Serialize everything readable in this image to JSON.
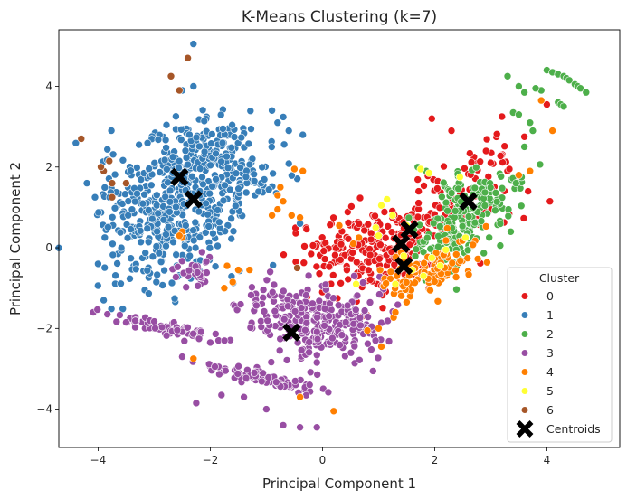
{
  "chart_data": {
    "type": "scatter",
    "title": "K-Means Clustering (k=7)",
    "xlabel": "Principal Component 1",
    "ylabel": "Principal Component 2",
    "xlim": [
      -4.7,
      5.3
    ],
    "ylim": [
      -4.95,
      5.4
    ],
    "xticks": [
      -4,
      -2,
      0,
      2,
      4
    ],
    "yticks": [
      -4,
      -2,
      0,
      2,
      4
    ],
    "xtick_labels": [
      "−4",
      "−2",
      "0",
      "2",
      "4"
    ],
    "ytick_labels": [
      "−4",
      "−2",
      "0",
      "2",
      "4"
    ],
    "grid": false,
    "legend": {
      "title": "Cluster",
      "placement": "lower right"
    },
    "series": [
      {
        "name": "0",
        "color": "#e41a1c",
        "clusters": [
          {
            "cx": 1.1,
            "cy": -0.1,
            "sx": 0.55,
            "sy": 0.55,
            "rho": 0.3,
            "n": 200
          },
          {
            "cx": 2.2,
            "cy": 0.9,
            "sx": 0.6,
            "sy": 0.45,
            "rho": 0.4,
            "n": 70
          },
          {
            "cx": 0.4,
            "cy": 0.2,
            "sx": 0.5,
            "sy": 0.4,
            "rho": 0.2,
            "n": 60
          },
          {
            "cx": 2.9,
            "cy": 2.2,
            "sx": 0.4,
            "sy": 0.35,
            "rho": 0.3,
            "n": 25
          }
        ],
        "points": [
          [
            3.2,
            3.25
          ],
          [
            1.95,
            3.2
          ],
          [
            2.3,
            2.9
          ],
          [
            4.0,
            3.55
          ],
          [
            3.6,
            2.75
          ]
        ]
      },
      {
        "name": "1",
        "color": "#377eb8",
        "clusters": [
          {
            "cx": -2.6,
            "cy": 0.6,
            "sx": 0.55,
            "sy": 0.75,
            "rho": 0.0,
            "n": 240
          },
          {
            "cx": -1.8,
            "cy": 1.9,
            "sx": 0.55,
            "sy": 0.5,
            "rho": 0.0,
            "n": 200
          },
          {
            "cx": -3.3,
            "cy": 0.4,
            "sx": 0.5,
            "sy": 0.9,
            "rho": 0.0,
            "n": 70
          },
          {
            "cx": -2.2,
            "cy": 2.7,
            "sx": 0.55,
            "sy": 0.4,
            "rho": 0.0,
            "n": 60
          },
          {
            "cx": -3.1,
            "cy": 1.6,
            "sx": 0.5,
            "sy": 0.6,
            "rho": 0.0,
            "n": 40
          }
        ],
        "points": [
          [
            -2.3,
            5.05
          ],
          [
            -2.3,
            4.0
          ],
          [
            -2.5,
            3.9
          ],
          [
            -4.0,
            -0.4
          ],
          [
            -3.9,
            -1.3
          ],
          [
            -4.2,
            1.6
          ],
          [
            -0.9,
            3.4
          ],
          [
            -0.6,
            2.9
          ],
          [
            -0.35,
            2.8
          ],
          [
            -0.8,
            3.1
          ],
          [
            -0.4,
            0.6
          ]
        ]
      },
      {
        "name": "2",
        "color": "#4daf4a",
        "clusters": [
          {
            "cx": 2.45,
            "cy": 0.55,
            "sx": 0.4,
            "sy": 0.55,
            "rho": 0.5,
            "n": 170
          },
          {
            "cx": 2.9,
            "cy": 1.4,
            "sx": 0.45,
            "sy": 0.3,
            "rho": 0.3,
            "n": 40
          }
        ],
        "points": [
          [
            4.0,
            4.4
          ],
          [
            4.1,
            4.35
          ],
          [
            4.2,
            4.3
          ],
          [
            4.3,
            4.25
          ],
          [
            4.35,
            4.2
          ],
          [
            4.4,
            4.15
          ],
          [
            4.5,
            4.05
          ],
          [
            4.55,
            4.0
          ],
          [
            4.6,
            3.95
          ],
          [
            4.7,
            3.85
          ],
          [
            4.2,
            3.6
          ],
          [
            4.25,
            3.55
          ],
          [
            4.3,
            3.5
          ],
          [
            3.9,
            3.9
          ],
          [
            3.8,
            3.95
          ],
          [
            3.5,
            4.0
          ],
          [
            3.6,
            3.85
          ],
          [
            3.3,
            4.25
          ],
          [
            3.7,
            3.1
          ],
          [
            3.4,
            3.35
          ],
          [
            3.5,
            3.3
          ],
          [
            3.75,
            2.9
          ],
          [
            3.6,
            2.5
          ],
          [
            3.45,
            1.6
          ],
          [
            3.55,
            1.75
          ],
          [
            1.7,
            2.0
          ],
          [
            1.85,
            1.9
          ]
        ]
      },
      {
        "name": "3",
        "color": "#984ea3",
        "clusters": [
          {
            "cx": 0.0,
            "cy": -1.9,
            "sx": 0.5,
            "sy": 0.45,
            "rho": 0.1,
            "n": 190
          },
          {
            "cx": -0.9,
            "cy": -1.5,
            "sx": 0.45,
            "sy": 0.4,
            "rho": 0.0,
            "n": 60
          },
          {
            "cx": -1.0,
            "cy": -3.25,
            "sx": 0.55,
            "sy": 0.16,
            "rho": -0.9,
            "n": 90
          },
          {
            "cx": -2.9,
            "cy": -1.95,
            "sx": 0.5,
            "sy": 0.15,
            "rho": -0.85,
            "n": 70
          },
          {
            "cx": -2.25,
            "cy": -0.6,
            "sx": 0.2,
            "sy": 0.2,
            "rho": 0.0,
            "n": 30
          },
          {
            "cx": 0.7,
            "cy": -1.9,
            "sx": 0.3,
            "sy": 0.3,
            "rho": 0.0,
            "n": 30
          }
        ],
        "points": [
          [
            -2.5,
            -2.7
          ],
          [
            -3.5,
            -1.85
          ],
          [
            -2.0,
            -2.35
          ],
          [
            -1.8,
            -3.65
          ],
          [
            -2.25,
            -3.85
          ],
          [
            -0.1,
            -4.45
          ],
          [
            -0.4,
            -4.45
          ],
          [
            -1.0,
            -4.0
          ],
          [
            -0.7,
            -4.4
          ],
          [
            -1.4,
            -3.7
          ]
        ]
      },
      {
        "name": "4",
        "color": "#ff7f00",
        "clusters": [
          {
            "cx": 1.8,
            "cy": -0.6,
            "sx": 0.45,
            "sy": 0.35,
            "rho": 0.5,
            "n": 80
          },
          {
            "cx": 2.3,
            "cy": -0.2,
            "sx": 0.35,
            "sy": 0.3,
            "rho": 0.4,
            "n": 20
          }
        ],
        "points": [
          [
            -0.75,
            1.5
          ],
          [
            -0.8,
            1.3
          ],
          [
            -0.7,
            1.15
          ],
          [
            -0.55,
            0.8
          ],
          [
            -0.4,
            0.75
          ],
          [
            -0.9,
            0.8
          ],
          [
            -1.7,
            -0.45
          ],
          [
            -1.5,
            -0.55
          ],
          [
            -1.6,
            -0.85
          ],
          [
            -1.3,
            -0.55
          ],
          [
            -1.75,
            -1.0
          ],
          [
            -0.35,
            1.9
          ],
          [
            -0.5,
            1.95
          ],
          [
            -2.3,
            -2.75
          ],
          [
            0.2,
            -4.05
          ],
          [
            -0.4,
            -3.7
          ],
          [
            1.5,
            -1.35
          ],
          [
            1.3,
            -1.6
          ],
          [
            1.0,
            -2.0
          ],
          [
            0.8,
            -2.05
          ],
          [
            1.05,
            -2.45
          ],
          [
            3.5,
            1.8
          ],
          [
            3.7,
            1.9
          ],
          [
            4.1,
            2.9
          ],
          [
            3.9,
            3.65
          ],
          [
            0.65,
            0.25
          ],
          [
            0.55,
            0.1
          ],
          [
            0.3,
            0.55
          ],
          [
            -0.8,
            0.95
          ],
          [
            -2.5,
            0.4
          ],
          [
            -2.5,
            0.25
          ],
          [
            -2.55,
            0.3
          ]
        ]
      },
      {
        "name": "5",
        "color": "#ffff33",
        "clusters": [],
        "points": [
          [
            1.8,
            -0.7
          ],
          [
            1.6,
            -0.55
          ],
          [
            2.1,
            -0.45
          ],
          [
            1.95,
            -0.25
          ],
          [
            2.2,
            -0.05
          ],
          [
            1.5,
            0.55
          ],
          [
            1.25,
            0.8
          ],
          [
            1.05,
            1.05
          ],
          [
            1.15,
            1.2
          ],
          [
            1.9,
            1.85
          ],
          [
            1.75,
            1.95
          ],
          [
            2.45,
            1.75
          ],
          [
            0.95,
            0.5
          ],
          [
            1.0,
            0.3
          ],
          [
            2.55,
            0.25
          ],
          [
            1.45,
            -0.2
          ],
          [
            1.3,
            -0.9
          ],
          [
            0.6,
            -0.9
          ]
        ]
      },
      {
        "name": "6",
        "color": "#a65628",
        "clusters": [],
        "points": [
          [
            -4.3,
            2.7
          ],
          [
            -3.9,
            1.9
          ],
          [
            -3.75,
            1.6
          ],
          [
            -3.8,
            2.15
          ],
          [
            -3.95,
            2.0
          ],
          [
            -3.75,
            1.25
          ],
          [
            -2.55,
            3.9
          ],
          [
            -2.7,
            4.25
          ],
          [
            -2.4,
            4.7
          ],
          [
            -3.5,
            1.6
          ],
          [
            -0.45,
            -0.5
          ]
        ]
      }
    ],
    "centroids": {
      "name": "Centroids",
      "color": "#000000",
      "points": [
        [
          -2.55,
          1.75
        ],
        [
          -2.3,
          1.2
        ],
        [
          1.55,
          0.45
        ],
        [
          1.4,
          0.1
        ],
        [
          1.45,
          -0.45
        ],
        [
          2.6,
          1.15
        ],
        [
          -0.55,
          -2.1
        ]
      ]
    }
  }
}
